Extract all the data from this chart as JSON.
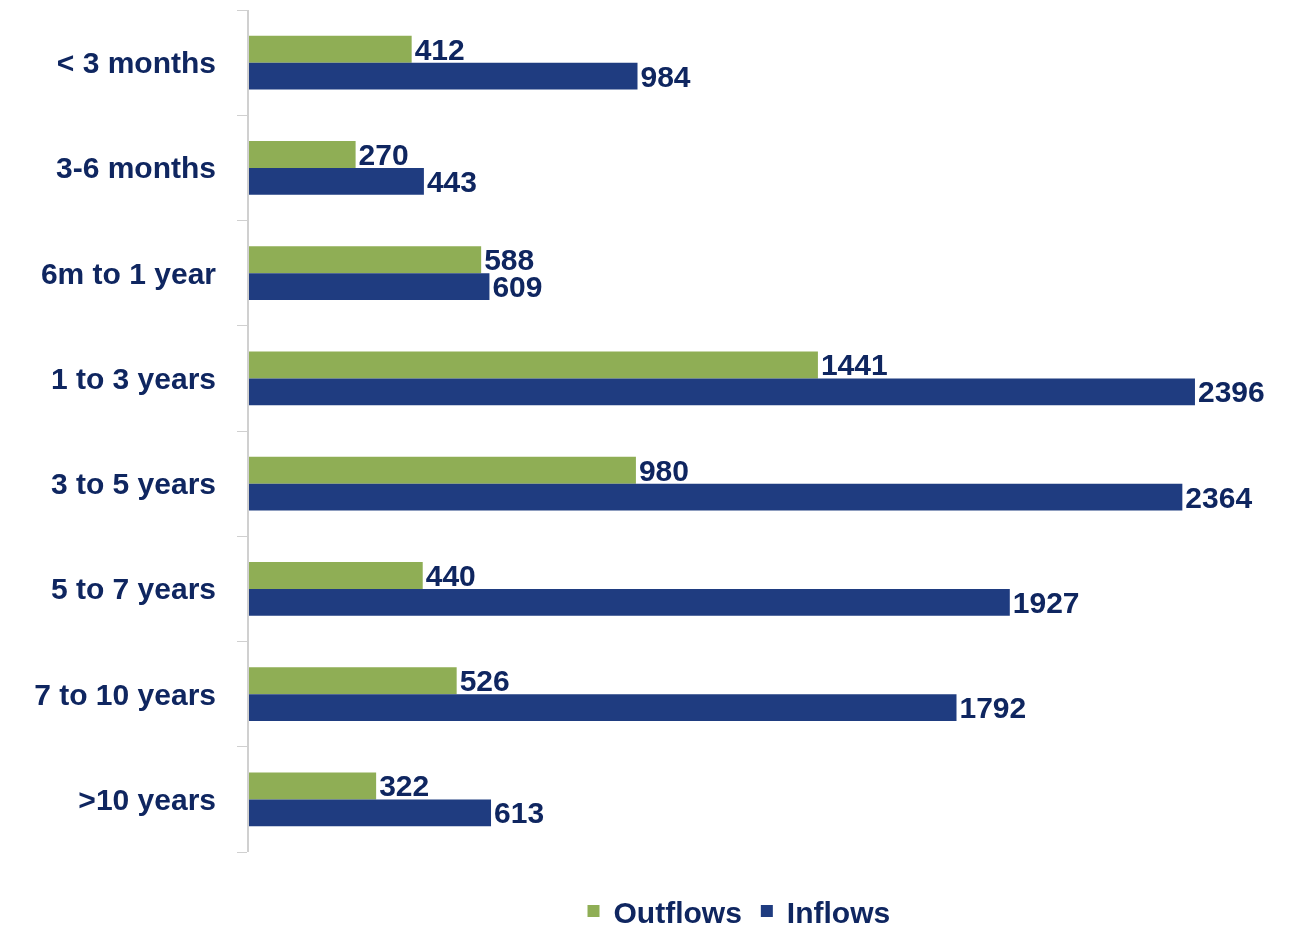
{
  "chart_data": {
    "type": "bar",
    "orientation": "horizontal",
    "categories": [
      "< 3 months",
      "3-6 months",
      "6m to 1 year",
      "1 to 3 years",
      "3 to 5 years",
      "5 to 7 years",
      "7 to 10 years",
      ">10 years"
    ],
    "series": [
      {
        "name": "Outflows",
        "color": "#8fae55",
        "values": [
          412,
          270,
          588,
          1441,
          980,
          440,
          526,
          322
        ]
      },
      {
        "name": "Inflows",
        "color": "#1f3c80",
        "values": [
          984,
          443,
          609,
          2396,
          2364,
          1927,
          1792,
          613
        ]
      }
    ],
    "data_labels": true,
    "legend": "bottom",
    "tick_labels": "y"
  }
}
